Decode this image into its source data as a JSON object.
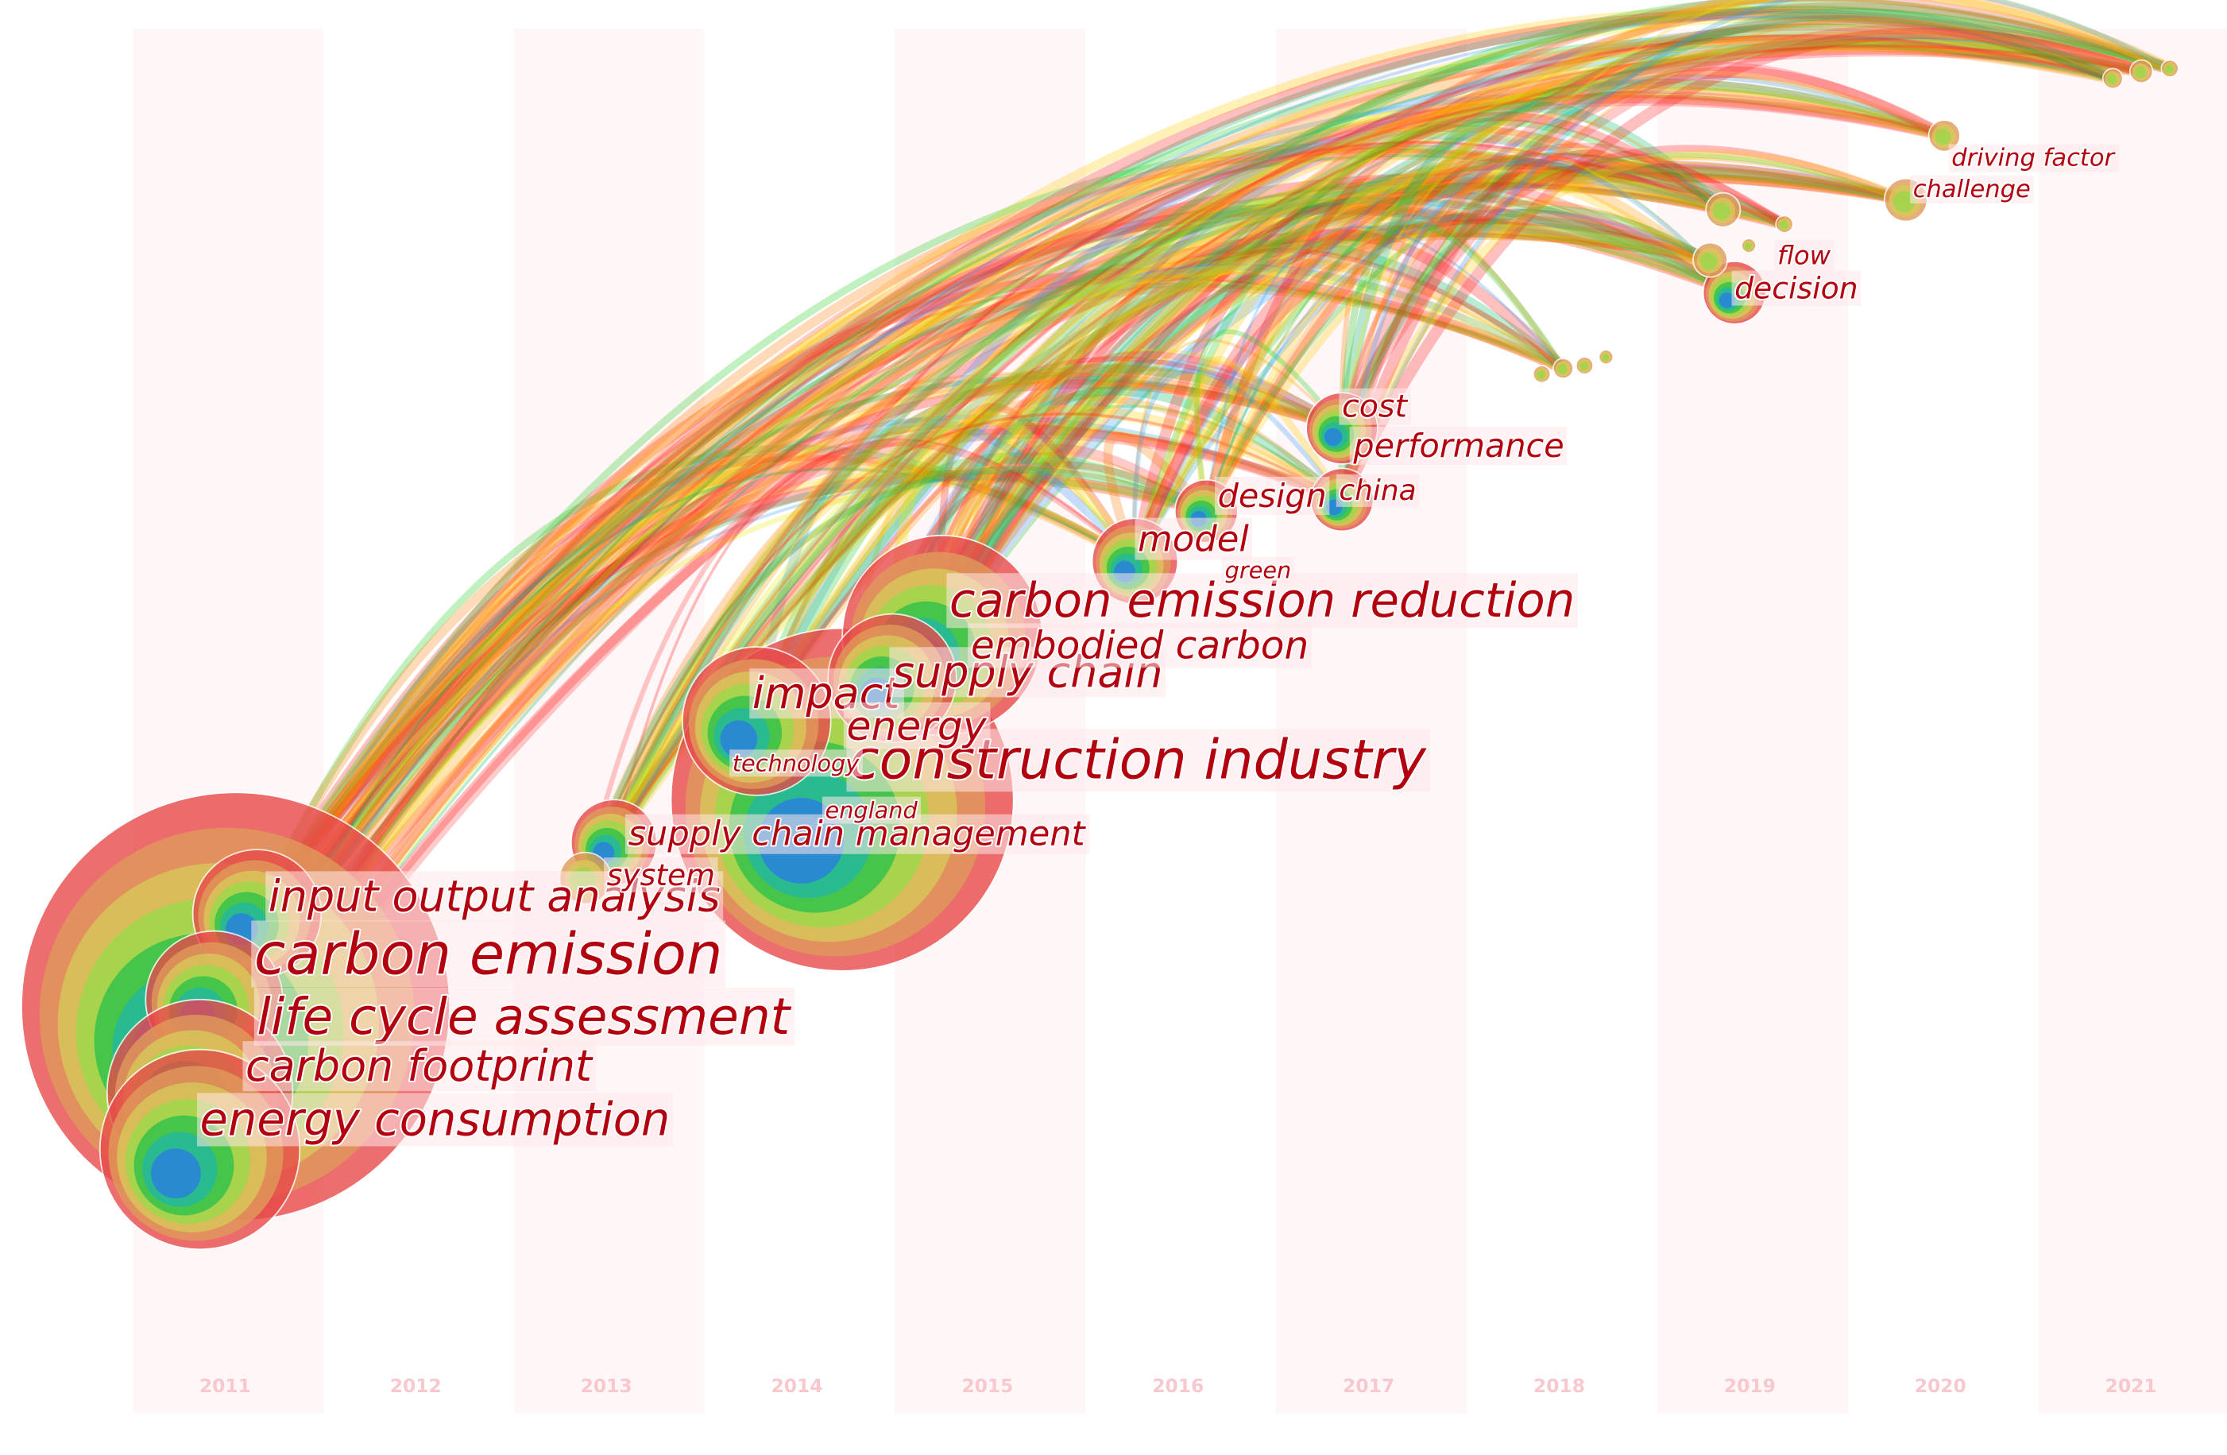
{
  "years": [
    "2011",
    "2012",
    "2013",
    "2014",
    "2015",
    "2016",
    "2017",
    "2018",
    "2019",
    "2020",
    "2021"
  ],
  "keywords": [
    "carbon emission",
    "life cycle assessment",
    "input output analysis",
    "carbon footprint",
    "energy consumption",
    "construction industry",
    "supply chain management",
    "system",
    "impact",
    "supply chain",
    "energy",
    "technology",
    "england",
    "embodied carbon",
    "carbon emission reduction",
    "model",
    "green",
    "design",
    "china",
    "cost",
    "performance",
    "flow",
    "decision",
    "challenge",
    "driving factor"
  ]
}
